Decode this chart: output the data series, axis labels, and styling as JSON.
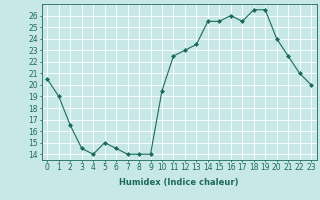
{
  "x": [
    0,
    1,
    2,
    3,
    4,
    5,
    6,
    7,
    8,
    9,
    10,
    11,
    12,
    13,
    14,
    15,
    16,
    17,
    18,
    19,
    20,
    21,
    22,
    23
  ],
  "y": [
    20.5,
    19.0,
    16.5,
    14.5,
    14.0,
    15.0,
    14.5,
    14.0,
    14.0,
    14.0,
    19.5,
    22.5,
    23.0,
    23.5,
    25.5,
    25.5,
    26.0,
    25.5,
    26.5,
    26.5,
    24.0,
    22.5,
    21.0,
    20.0
  ],
  "title": "",
  "xlabel": "Humidex (Indice chaleur)",
  "ylabel": "",
  "xlim": [
    -0.5,
    23.5
  ],
  "ylim": [
    13.5,
    27
  ],
  "yticks": [
    14,
    15,
    16,
    17,
    18,
    19,
    20,
    21,
    22,
    23,
    24,
    25,
    26
  ],
  "xticks": [
    0,
    1,
    2,
    3,
    4,
    5,
    6,
    7,
    8,
    9,
    10,
    11,
    12,
    13,
    14,
    15,
    16,
    17,
    18,
    19,
    20,
    21,
    22,
    23
  ],
  "line_color": "#1a6b5a",
  "marker": "D",
  "marker_size": 2,
  "bg_color": "#c8e8e8",
  "grid_color": "#ffffff",
  "label_fontsize": 6,
  "tick_fontsize": 5.5
}
